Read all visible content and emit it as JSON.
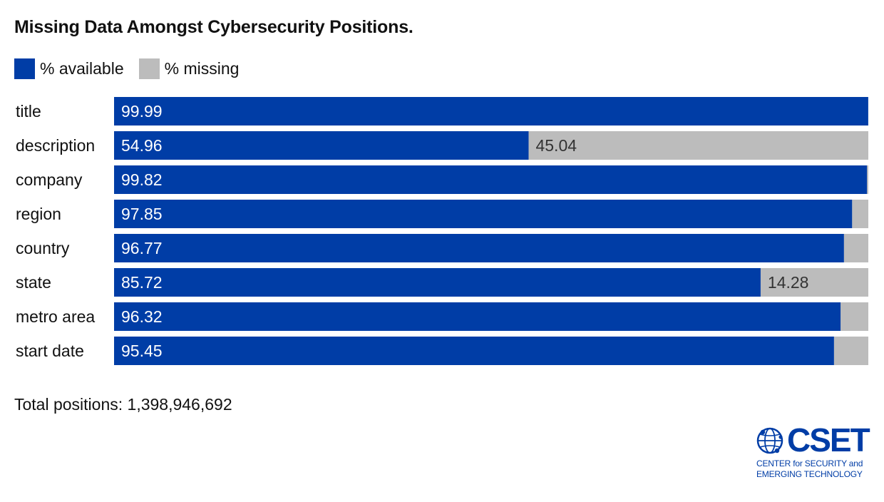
{
  "title": "Missing Data Amongst Cybersecurity Positions.",
  "legend": {
    "available": "% available",
    "missing": "% missing"
  },
  "colors": {
    "available": "#003da6",
    "missing": "#bcbcbc",
    "brand": "#003da6"
  },
  "total": "Total positions: 1,398,946,692",
  "logo": {
    "wordmark": "CSET",
    "line1": "CENTER for SECURITY and",
    "line2": "EMERGING TECHNOLOGY",
    "icon": "globe-network-icon"
  },
  "chart_data": {
    "type": "bar",
    "orientation": "horizontal",
    "stacked": true,
    "categories": [
      "title",
      "description",
      "company",
      "region",
      "country",
      "state",
      "metro area",
      "start date"
    ],
    "series": [
      {
        "name": "% available",
        "values": [
          99.99,
          54.96,
          99.82,
          97.85,
          96.77,
          85.72,
          96.32,
          95.45
        ]
      },
      {
        "name": "% missing",
        "values": [
          0.01,
          45.04,
          0.18,
          2.15,
          3.23,
          14.28,
          3.68,
          4.55
        ]
      }
    ],
    "data_labels": {
      "available": [
        "99.99",
        "54.96",
        "99.82",
        "97.85",
        "96.77",
        "85.72",
        "96.32",
        "95.45"
      ],
      "missing": [
        "",
        "45.04",
        "",
        "",
        "",
        "14.28",
        "",
        ""
      ]
    },
    "xlim": [
      0,
      100
    ],
    "grid": false,
    "legend_position": "top-left"
  }
}
